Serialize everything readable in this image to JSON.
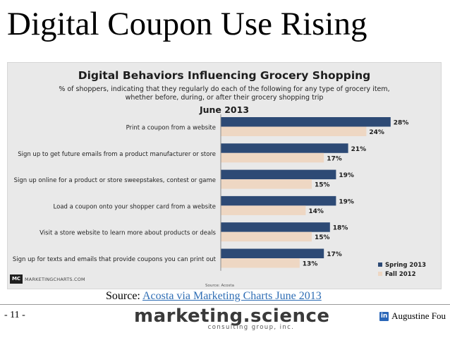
{
  "slide": {
    "title": "Digital Coupon Use Rising",
    "source_prefix": "Source: ",
    "source_link": "Acosta via Marketing Charts June 2013",
    "page_number": "- 11 -",
    "brand_name": "marketing.science",
    "brand_sub": "consulting group, inc.",
    "author": "Augustine Fou",
    "linkedin_icon": "linkedin-icon"
  },
  "chart_data": {
    "type": "bar",
    "orientation": "horizontal",
    "title": "Digital Behaviors Influencing Grocery Shopping",
    "subtitle": "% of shoppers, indicating that they regularly do each of the following for any type of grocery item, whether before, during, or after their grocery shopping trip",
    "date_label": "June 2013",
    "categories": [
      "Print a coupon from a website",
      "Sign up to get future emails from a product manufacturer or store",
      "Sign up online for a product or store sweepstakes, contest or game",
      "Load a coupon onto your shopper card from a website",
      "Visit a store website to learn more about products or deals",
      "Sign up for texts and emails that provide coupons you can print out"
    ],
    "series": [
      {
        "name": "Spring 2013",
        "color": "#2d4a75",
        "values": [
          28,
          21,
          19,
          19,
          18,
          17
        ]
      },
      {
        "name": "Fall 2012",
        "color": "#eed7c3",
        "values": [
          24,
          17,
          15,
          14,
          15,
          13
        ]
      }
    ],
    "value_suffix": "%",
    "xlim": [
      0,
      30
    ],
    "grid": false,
    "legend_position": "bottom-right",
    "source": "Source: Acosta",
    "publisher_logo": "MC",
    "publisher": "MARKETINGCHARTS.COM"
  }
}
